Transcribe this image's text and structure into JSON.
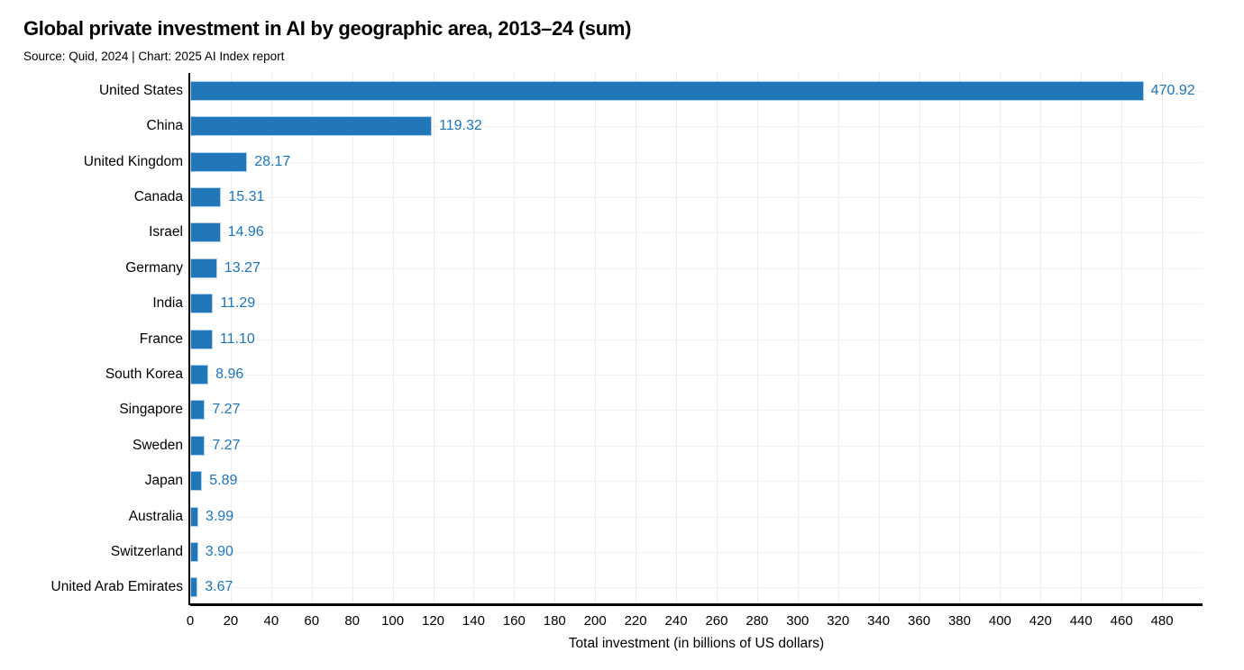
{
  "header": {
    "title": "Global private investment in AI by geographic area, 2013–24 (sum)",
    "subtitle": "Source: Quid, 2024 | Chart: 2025 AI Index report"
  },
  "chart_data": {
    "type": "bar",
    "orientation": "horizontal",
    "title": "Global private investment in AI by geographic area, 2013–24 (sum)",
    "subtitle": "Source: Quid, 2024 | Chart: 2025 AI Index report",
    "xlabel": "Total investment (in billions of US dollars)",
    "categories": [
      "United States",
      "China",
      "United Kingdom",
      "Canada",
      "Israel",
      "Germany",
      "India",
      "France",
      "South Korea",
      "Singapore",
      "Sweden",
      "Japan",
      "Australia",
      "Switzerland",
      "United Arab Emirates"
    ],
    "values": [
      470.92,
      119.32,
      28.17,
      15.31,
      14.96,
      13.27,
      11.29,
      11.1,
      8.96,
      7.27,
      7.27,
      5.89,
      3.99,
      3.9,
      3.67
    ],
    "value_labels": [
      "470.92",
      "119.32",
      "28.17",
      "15.31",
      "14.96",
      "13.27",
      "11.29",
      "11.10",
      "8.96",
      "7.27",
      "7.27",
      "5.89",
      "3.99",
      "3.90",
      "3.67"
    ],
    "xlim": [
      0,
      500
    ],
    "xticks": [
      0,
      20,
      40,
      60,
      80,
      100,
      120,
      140,
      160,
      180,
      200,
      220,
      240,
      260,
      280,
      300,
      320,
      340,
      360,
      380,
      400,
      420,
      440,
      460,
      480
    ],
    "grid": true,
    "legend": null,
    "colors": {
      "bar_fill": "#2277b8",
      "bar_border": "#aed2ec",
      "value_label": "#1b75bc",
      "axis": "#000000",
      "vgrid": "#ececec",
      "hgrid": "#f1f1f1"
    }
  }
}
